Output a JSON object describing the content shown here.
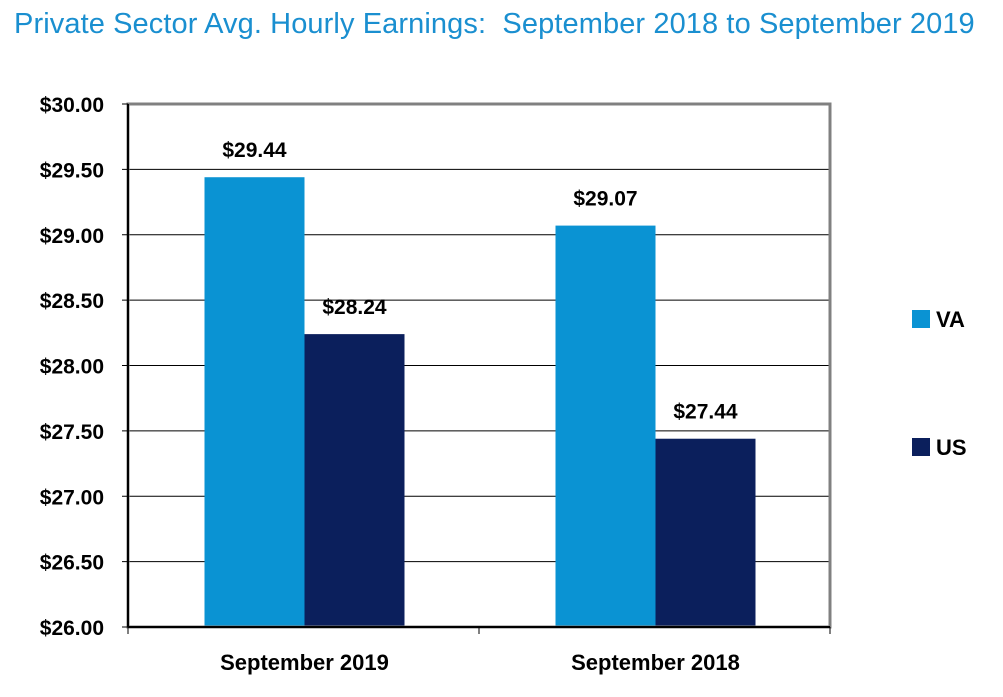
{
  "chart_data": {
    "type": "bar",
    "title": "Private Sector Avg. Hourly Earnings:  September 2018 to September 2019",
    "categories": [
      "September 2019",
      "September 2018"
    ],
    "series": [
      {
        "name": "VA",
        "values": [
          29.44,
          29.07
        ],
        "labels": [
          "$29.44",
          "$29.07"
        ],
        "color": "#0a93d3"
      },
      {
        "name": "US",
        "values": [
          28.24,
          27.44
        ],
        "labels": [
          "$28.24",
          "$27.44"
        ],
        "color": "#0b1f5c"
      }
    ],
    "xlabel": "",
    "ylabel": "",
    "ylim": [
      26,
      30
    ],
    "yticks": [
      26,
      26.5,
      27,
      27.5,
      28,
      28.5,
      29,
      29.5,
      30
    ],
    "ytick_labels": [
      "$26.00",
      "$26.50",
      "$27.00",
      "$27.50",
      "$28.00",
      "$28.50",
      "$29.00",
      "$29.50",
      "$30.00"
    ],
    "grid": true,
    "legend": "right"
  }
}
